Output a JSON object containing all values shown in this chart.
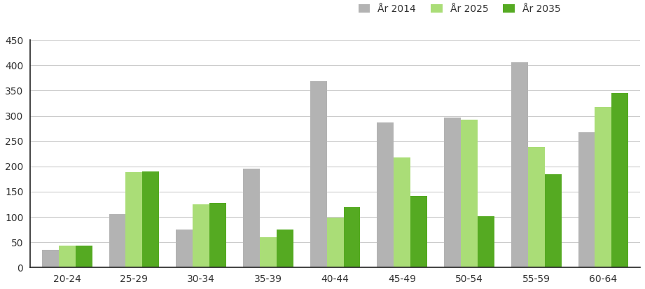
{
  "categories": [
    "20-24",
    "25-29",
    "30-34",
    "35-39",
    "40-44",
    "45-49",
    "50-54",
    "55-59",
    "60-64"
  ],
  "series": {
    "År 2014": [
      35,
      105,
      75,
      196,
      368,
      287,
      297,
      406,
      268
    ],
    "År 2025": [
      43,
      189,
      125,
      60,
      99,
      218,
      292,
      238,
      318
    ],
    "År 2035": [
      43,
      190,
      128,
      75,
      120,
      141,
      101,
      185,
      345
    ]
  },
  "colors": {
    "År 2014": "#b3b3b3",
    "År 2025": "#aadd77",
    "År 2035": "#55aa22"
  },
  "legend_labels": [
    "År 2014",
    "År 2025",
    "År 2035"
  ],
  "ylim": [
    0,
    450
  ],
  "yticks": [
    0,
    50,
    100,
    150,
    200,
    250,
    300,
    350,
    400,
    450
  ],
  "bar_width": 0.25,
  "background_color": "#ffffff",
  "grid_color": "#cccccc",
  "tick_label_fontsize": 10,
  "legend_fontsize": 10,
  "tick_color": "#333333"
}
